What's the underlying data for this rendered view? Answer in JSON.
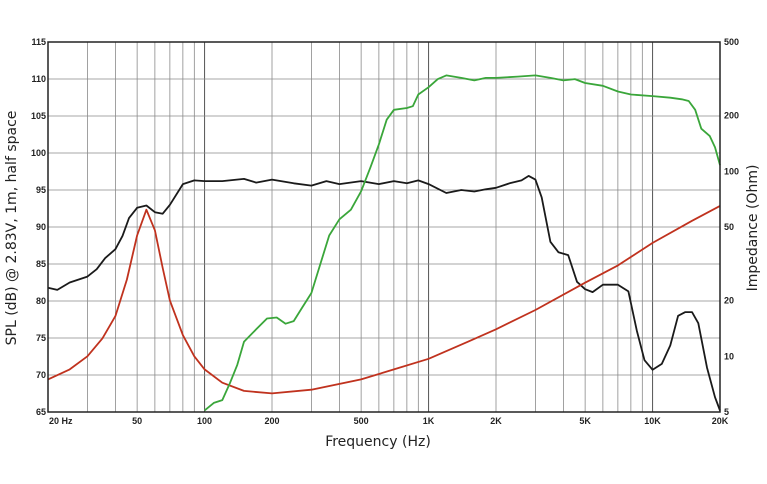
{
  "chart_data": {
    "type": "line",
    "xlabel": "Frequency (Hz)",
    "ylabel": "SPL (dB) @ 2.83V, 1m, half space",
    "y2label": "Impedance (Ohm)",
    "xscale": "log",
    "xlim": [
      20,
      20000
    ],
    "ylim": [
      65,
      115
    ],
    "y2lim": [
      5,
      500
    ],
    "y2scale": "log",
    "grid": true,
    "x_tick_labels": [
      {
        "value": 20,
        "label": "20 Hz"
      },
      {
        "value": 50,
        "label": "50"
      },
      {
        "value": 100,
        "label": "100"
      },
      {
        "value": 200,
        "label": "200"
      },
      {
        "value": 500,
        "label": "500"
      },
      {
        "value": 1000,
        "label": "1K"
      },
      {
        "value": 2000,
        "label": "2K"
      },
      {
        "value": 5000,
        "label": "5K"
      },
      {
        "value": 10000,
        "label": "10K"
      },
      {
        "value": 20000,
        "label": "20K"
      }
    ],
    "y_tick_labels": [
      "65",
      "70",
      "75",
      "80",
      "85",
      "90",
      "95",
      "100",
      "105",
      "110",
      "115"
    ],
    "y2_tick_labels": [
      {
        "value": 5,
        "label": "5"
      },
      {
        "value": 10,
        "label": "10"
      },
      {
        "value": 20,
        "label": "20"
      },
      {
        "value": 50,
        "label": "50"
      },
      {
        "value": 100,
        "label": "100"
      },
      {
        "value": 200,
        "label": "200"
      },
      {
        "value": 500,
        "label": "500"
      }
    ],
    "series": [
      {
        "color": "#1a1a1a",
        "axis": "left",
        "points": [
          [
            20,
            81.8
          ],
          [
            22,
            81.5
          ],
          [
            25,
            82.5
          ],
          [
            30,
            83.3
          ],
          [
            33,
            84.3
          ],
          [
            36,
            85.8
          ],
          [
            40,
            87
          ],
          [
            43,
            88.8
          ],
          [
            46,
            91.2
          ],
          [
            50,
            92.6
          ],
          [
            55,
            92.9
          ],
          [
            60,
            92
          ],
          [
            65,
            91.8
          ],
          [
            70,
            93
          ],
          [
            80,
            95.8
          ],
          [
            90,
            96.3
          ],
          [
            100,
            96.2
          ],
          [
            120,
            96.2
          ],
          [
            150,
            96.5
          ],
          [
            170,
            96
          ],
          [
            200,
            96.4
          ],
          [
            250,
            95.9
          ],
          [
            300,
            95.6
          ],
          [
            350,
            96.2
          ],
          [
            400,
            95.8
          ],
          [
            500,
            96.2
          ],
          [
            600,
            95.8
          ],
          [
            700,
            96.2
          ],
          [
            800,
            95.9
          ],
          [
            900,
            96.3
          ],
          [
            1000,
            95.8
          ],
          [
            1200,
            94.6
          ],
          [
            1400,
            95
          ],
          [
            1600,
            94.8
          ],
          [
            1800,
            95.1
          ],
          [
            2000,
            95.3
          ],
          [
            2300,
            95.9
          ],
          [
            2600,
            96.3
          ],
          [
            2800,
            96.9
          ],
          [
            3000,
            96.4
          ],
          [
            3200,
            94
          ],
          [
            3500,
            88
          ],
          [
            3800,
            86.6
          ],
          [
            4200,
            86.2
          ],
          [
            4600,
            82.6
          ],
          [
            5000,
            81.6
          ],
          [
            5400,
            81.2
          ],
          [
            6000,
            82.2
          ],
          [
            7000,
            82.2
          ],
          [
            7800,
            81.3
          ],
          [
            8500,
            76
          ],
          [
            9200,
            72
          ],
          [
            10000,
            70.7
          ],
          [
            11000,
            71.5
          ],
          [
            12000,
            74
          ],
          [
            13000,
            78
          ],
          [
            14000,
            78.5
          ],
          [
            15000,
            78.5
          ],
          [
            16000,
            77
          ],
          [
            17500,
            71
          ],
          [
            19000,
            67
          ],
          [
            20000,
            65.2
          ]
        ]
      },
      {
        "color": "#c0321e",
        "axis": "right",
        "points": [
          [
            20,
            7.5
          ],
          [
            25,
            8.5
          ],
          [
            30,
            10
          ],
          [
            35,
            12.5
          ],
          [
            40,
            16.5
          ],
          [
            45,
            26
          ],
          [
            50,
            45
          ],
          [
            55,
            62
          ],
          [
            60,
            48
          ],
          [
            65,
            30
          ],
          [
            70,
            20
          ],
          [
            80,
            13
          ],
          [
            90,
            10
          ],
          [
            100,
            8.5
          ],
          [
            120,
            7.2
          ],
          [
            150,
            6.5
          ],
          [
            200,
            6.3
          ],
          [
            300,
            6.6
          ],
          [
            500,
            7.5
          ],
          [
            700,
            8.5
          ],
          [
            1000,
            9.7
          ],
          [
            1500,
            12
          ],
          [
            2000,
            14
          ],
          [
            3000,
            17.8
          ],
          [
            5000,
            25
          ],
          [
            7000,
            31
          ],
          [
            10000,
            41
          ],
          [
            15000,
            54
          ],
          [
            20000,
            65
          ]
        ]
      },
      {
        "color": "#3aa63a",
        "axis": "right",
        "points": [
          [
            100,
            5.1
          ],
          [
            110,
            5.6
          ],
          [
            120,
            5.8
          ],
          [
            130,
            7.2
          ],
          [
            140,
            9
          ],
          [
            150,
            12
          ],
          [
            170,
            14
          ],
          [
            190,
            16
          ],
          [
            210,
            16.2
          ],
          [
            230,
            15
          ],
          [
            250,
            15.5
          ],
          [
            270,
            18
          ],
          [
            300,
            22
          ],
          [
            330,
            32
          ],
          [
            360,
            45
          ],
          [
            400,
            55
          ],
          [
            450,
            62
          ],
          [
            500,
            78
          ],
          [
            550,
            105
          ],
          [
            600,
            140
          ],
          [
            650,
            190
          ],
          [
            700,
            215
          ],
          [
            800,
            220
          ],
          [
            850,
            225
          ],
          [
            900,
            260
          ],
          [
            1000,
            285
          ],
          [
            1100,
            315
          ],
          [
            1200,
            330
          ],
          [
            1400,
            320
          ],
          [
            1600,
            310
          ],
          [
            1800,
            320
          ],
          [
            2000,
            320
          ],
          [
            2500,
            325
          ],
          [
            3000,
            330
          ],
          [
            3500,
            320
          ],
          [
            4000,
            310
          ],
          [
            4500,
            315
          ],
          [
            5000,
            300
          ],
          [
            6000,
            290
          ],
          [
            7000,
            270
          ],
          [
            8000,
            260
          ],
          [
            10000,
            255
          ],
          [
            12000,
            250
          ],
          [
            13500,
            245
          ],
          [
            14500,
            240
          ],
          [
            15500,
            215
          ],
          [
            16500,
            170
          ],
          [
            18000,
            155
          ],
          [
            19000,
            135
          ],
          [
            20000,
            108
          ]
        ]
      }
    ]
  }
}
